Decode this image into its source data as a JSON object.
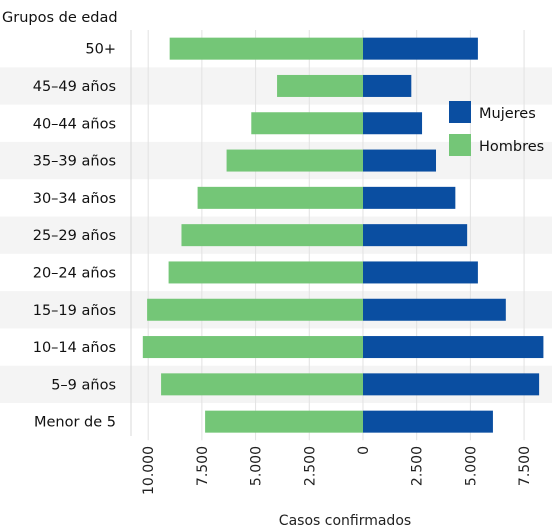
{
  "chart_data": {
    "type": "bar",
    "orientation": "horizontal-population-pyramid",
    "categories_title": "Grupos de edad",
    "xlabel": "Casos confirmados",
    "categories": [
      "50+",
      "45–49 años",
      "40–44 años",
      "35–39 años",
      "30–34 años",
      "25–29 años",
      "20–24 años",
      "15–19 años",
      "10–14 años",
      "5–9 años",
      "Menor de 5"
    ],
    "series": [
      {
        "name": "Mujeres",
        "color": "#0a4ea1",
        "side": "right",
        "values": [
          5350,
          2250,
          2750,
          3400,
          4300,
          4850,
          5350,
          6650,
          8400,
          8200,
          6050
        ]
      },
      {
        "name": "Hombres",
        "color": "#74c677",
        "side": "left",
        "values": [
          9000,
          4000,
          5200,
          6350,
          7700,
          8450,
          9050,
          10050,
          10250,
          9400,
          7350
        ]
      }
    ],
    "xlim": [
      -10800,
      8800
    ],
    "xticks": [
      -10000,
      -7500,
      -5000,
      -2500,
      0,
      2500,
      5000,
      7500
    ],
    "xtick_labels": [
      "10.000",
      "7.500",
      "5.000",
      "2.500",
      "0",
      "2.500",
      "5.000",
      "7.500"
    ],
    "legend": [
      "Mujeres",
      "Hombres"
    ],
    "legend_position": "top-right",
    "grid": "vertical",
    "row_banding": true
  }
}
